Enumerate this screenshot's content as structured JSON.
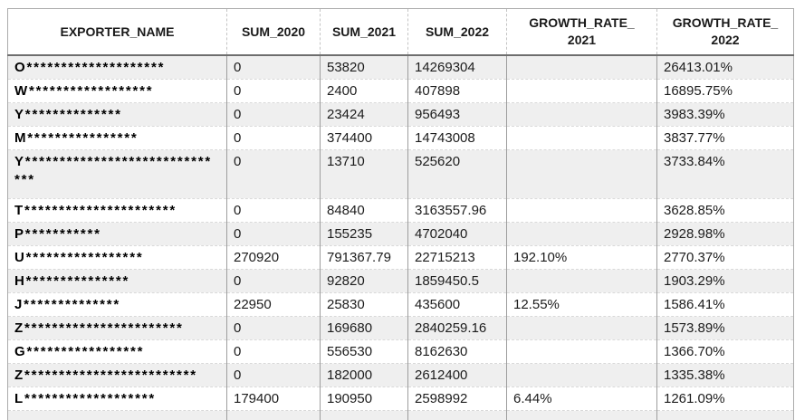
{
  "table": {
    "columns": [
      {
        "key": "exporter_name",
        "label": "EXPORTER_NAME"
      },
      {
        "key": "sum_2020",
        "label": "SUM_2020"
      },
      {
        "key": "sum_2021",
        "label": "SUM_2021"
      },
      {
        "key": "sum_2022",
        "label": "SUM_2022"
      },
      {
        "key": "growth_rate_2021",
        "label": "GROWTH_RATE_\n2021"
      },
      {
        "key": "growth_rate_2022",
        "label": "GROWTH_RATE_\n2022"
      }
    ],
    "rows": [
      {
        "cells": [
          "O********************",
          "0",
          "53820",
          "14269304",
          "",
          "26413.01%"
        ]
      },
      {
        "cells": [
          "W******************",
          "0",
          "2400",
          "407898",
          "",
          "16895.75%"
        ]
      },
      {
        "cells": [
          "Y**************",
          "0",
          "23424",
          "956493",
          "",
          "3983.39%"
        ]
      },
      {
        "cells": [
          "M****************",
          "0",
          "374400",
          "14743008",
          "",
          "3837.77%"
        ]
      },
      {
        "cells": [
          "Y******************************",
          "0",
          "13710",
          "525620",
          "",
          "3733.84%"
        ]
      },
      {
        "cells": [
          "T**********************",
          "0",
          "84840",
          "3163557.96",
          "",
          "3628.85%"
        ]
      },
      {
        "cells": [
          "P***********",
          "0",
          "155235",
          "4702040",
          "",
          "2928.98%"
        ]
      },
      {
        "cells": [
          "U*****************",
          "270920",
          "791367.79",
          "22715213",
          "192.10%",
          "2770.37%"
        ]
      },
      {
        "cells": [
          "H***************",
          "0",
          "92820",
          "1859450.5",
          "",
          "1903.29%"
        ]
      },
      {
        "cells": [
          "J**************",
          "22950",
          "25830",
          "435600",
          "12.55%",
          "1586.41%"
        ]
      },
      {
        "cells": [
          "Z***********************",
          "0",
          "169680",
          "2840259.16",
          "",
          "1573.89%"
        ]
      },
      {
        "cells": [
          "G*****************",
          "0",
          "556530",
          "8162630",
          "",
          "1366.70%"
        ]
      },
      {
        "cells": [
          "Z*************************",
          "0",
          "182000",
          "2612400",
          "",
          "1335.38%"
        ]
      },
      {
        "cells": [
          "L*******************",
          "179400",
          "190950",
          "2598992",
          "6.44%",
          "1261.09%"
        ]
      }
    ]
  },
  "colors": {
    "band_row": "#efefef",
    "grid_vertical": "#9d9d9d",
    "grid_horizontal_dashed": "#d9d9d9",
    "header_underline": "#6e6e6e",
    "outer_border": "#ababab",
    "header_text": "#1a1a1a",
    "name_text": "#000000",
    "value_text": "#1c1c1c"
  }
}
